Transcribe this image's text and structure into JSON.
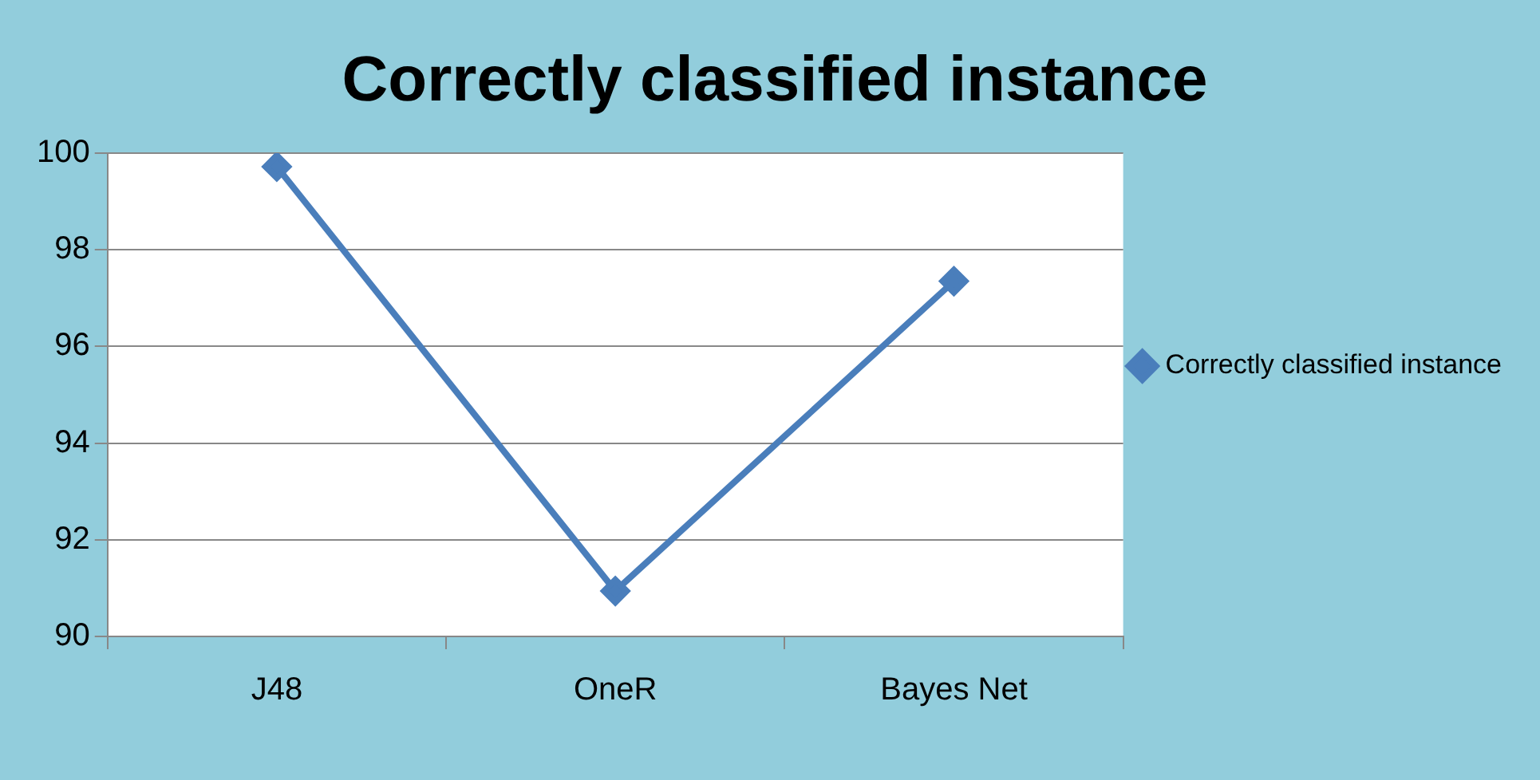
{
  "chart_data": {
    "type": "line",
    "title": "Correctly classified instance",
    "categories": [
      "J48",
      "OneR",
      "Bayes Net"
    ],
    "series": [
      {
        "name": "Correctly classified instance",
        "color": "#4a7ebb",
        "values": [
          99.72,
          90.94,
          97.35
        ]
      }
    ],
    "ylim": [
      90,
      100
    ],
    "yticks": [
      90,
      92,
      94,
      96,
      98,
      100
    ],
    "grid": "y",
    "legend": "right",
    "marker": "diamond",
    "line_style": "solid"
  }
}
